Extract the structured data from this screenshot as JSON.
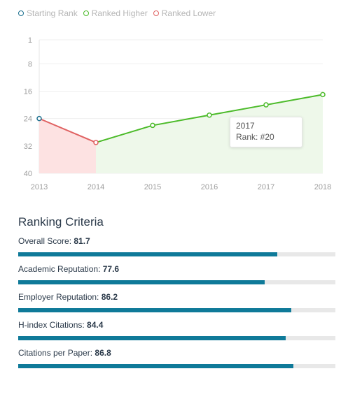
{
  "legend": {
    "items": [
      {
        "label": "Starting Rank",
        "color": "#1b6f8e"
      },
      {
        "label": "Ranked Higher",
        "color": "#4cbb2a"
      },
      {
        "label": "Ranked Lower",
        "color": "#e06262"
      }
    ]
  },
  "chart_data": {
    "type": "line",
    "x": [
      "2013",
      "2014",
      "2015",
      "2016",
      "2017",
      "2018"
    ],
    "series": [
      {
        "name": "Ranked Lower",
        "values": [
          24,
          31,
          null,
          null,
          null,
          null
        ]
      },
      {
        "name": "Ranked Higher",
        "values": [
          null,
          31,
          26,
          23,
          20,
          17
        ]
      }
    ],
    "starting_rank": 24,
    "ylim": [
      1,
      40
    ],
    "y_inverted": true,
    "yticks": [
      "1",
      "8",
      "16",
      "24",
      "32",
      "40"
    ],
    "ytick_values": [
      1,
      8,
      16,
      24,
      32,
      40
    ],
    "colors": {
      "starting": "#1b6f8e",
      "higher": "#4cbb2a",
      "lower": "#e06262",
      "higher_fill": "#eef8ea",
      "lower_fill": "#fde2e2"
    },
    "grid": true,
    "tooltip": {
      "year": "2017",
      "text": "Rank: #20"
    }
  },
  "criteria": {
    "title": "Ranking Criteria",
    "items": [
      {
        "label": "Overall Score:",
        "value": "81.7",
        "pct": 81.7
      },
      {
        "label": "Academic Reputation:",
        "value": "77.6",
        "pct": 77.6
      },
      {
        "label": "Employer Reputation:",
        "value": "86.2",
        "pct": 86.2
      },
      {
        "label": "H-index Citations:",
        "value": "84.4",
        "pct": 84.4
      },
      {
        "label": "Citations per Paper:",
        "value": "86.8",
        "pct": 86.8
      }
    ]
  }
}
